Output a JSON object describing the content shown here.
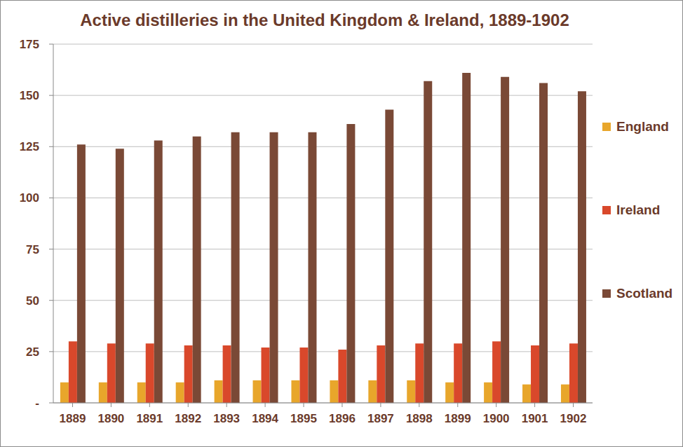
{
  "chart_data": {
    "type": "bar",
    "title": "Active distilleries in the United Kingdom & Ireland, 1889-1902",
    "categories": [
      "1889",
      "1890",
      "1891",
      "1892",
      "1893",
      "1894",
      "1895",
      "1896",
      "1897",
      "1898",
      "1899",
      "1900",
      "1901",
      "1902"
    ],
    "series": [
      {
        "name": "England",
        "color": "#E8A62B",
        "values": [
          10,
          10,
          10,
          10,
          11,
          11,
          11,
          11,
          11,
          11,
          10,
          10,
          9,
          9
        ]
      },
      {
        "name": "Ireland",
        "color": "#D9482B",
        "values": [
          30,
          29,
          29,
          28,
          28,
          27,
          27,
          26,
          28,
          29,
          29,
          30,
          28,
          29
        ]
      },
      {
        "name": "Scotland",
        "color": "#7A4936",
        "values": [
          126,
          124,
          128,
          130,
          132,
          132,
          132,
          136,
          143,
          157,
          161,
          159,
          156,
          152
        ]
      }
    ],
    "ylim": [
      0,
      175
    ],
    "yticks": [
      {
        "value": 0,
        "label": "-"
      },
      25,
      50,
      75,
      100,
      125,
      150,
      175
    ],
    "grid": true,
    "legend": "right"
  }
}
